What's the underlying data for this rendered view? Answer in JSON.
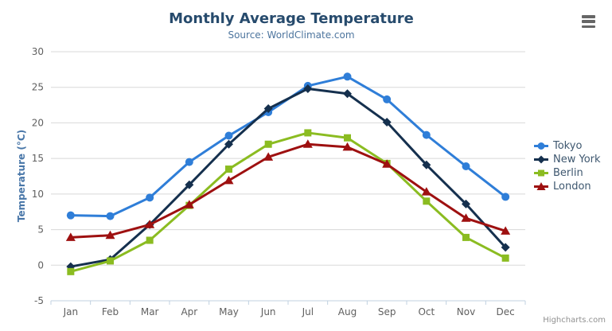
{
  "header": {
    "title": "Monthly Average Temperature",
    "subtitle": "Source: WorldClimate.com"
  },
  "export_menu": {
    "icon": "hamburger-menu-icon",
    "bar_color": "#666666"
  },
  "credits": {
    "label": "Highcharts.com"
  },
  "colors": {
    "title": "#274b6d",
    "subtitle": "#4d759e",
    "axis_title": "#4876a8",
    "axis_labels": "#606060",
    "gridline": "#d8d8d8",
    "axis_line": "#c0d0e0",
    "legend_text": "#3e576f"
  },
  "chart_data": {
    "type": "line",
    "title": "Monthly Average Temperature",
    "subtitle": "Source: WorldClimate.com",
    "xlabel": "",
    "ylabel": "Temperature (°C)",
    "ylim": [
      -5,
      30
    ],
    "yticks": [
      -5,
      0,
      5,
      10,
      15,
      20,
      25,
      30
    ],
    "grid": true,
    "legend_position": "right",
    "categories": [
      "Jan",
      "Feb",
      "Mar",
      "Apr",
      "May",
      "Jun",
      "Jul",
      "Aug",
      "Sep",
      "Oct",
      "Nov",
      "Dec"
    ],
    "series": [
      {
        "name": "Tokyo",
        "color": "#2f7ed8",
        "marker": "circle",
        "values": [
          7.0,
          6.9,
          9.5,
          14.5,
          18.2,
          21.5,
          25.2,
          26.5,
          23.3,
          18.3,
          13.9,
          9.6
        ]
      },
      {
        "name": "New York",
        "color": "#15304e",
        "marker": "diamond",
        "values": [
          -0.2,
          0.8,
          5.7,
          11.3,
          17.0,
          22.0,
          24.8,
          24.1,
          20.1,
          14.1,
          8.6,
          2.5
        ]
      },
      {
        "name": "Berlin",
        "color": "#8bbc21",
        "marker": "square",
        "values": [
          -0.9,
          0.6,
          3.5,
          8.4,
          13.5,
          17.0,
          18.6,
          17.9,
          14.3,
          9.0,
          3.9,
          1.0
        ]
      },
      {
        "name": "London",
        "color": "#9e1010",
        "marker": "triangle",
        "values": [
          3.9,
          4.2,
          5.7,
          8.5,
          11.9,
          15.2,
          17.0,
          16.6,
          14.2,
          10.3,
          6.6,
          4.8
        ]
      }
    ]
  }
}
